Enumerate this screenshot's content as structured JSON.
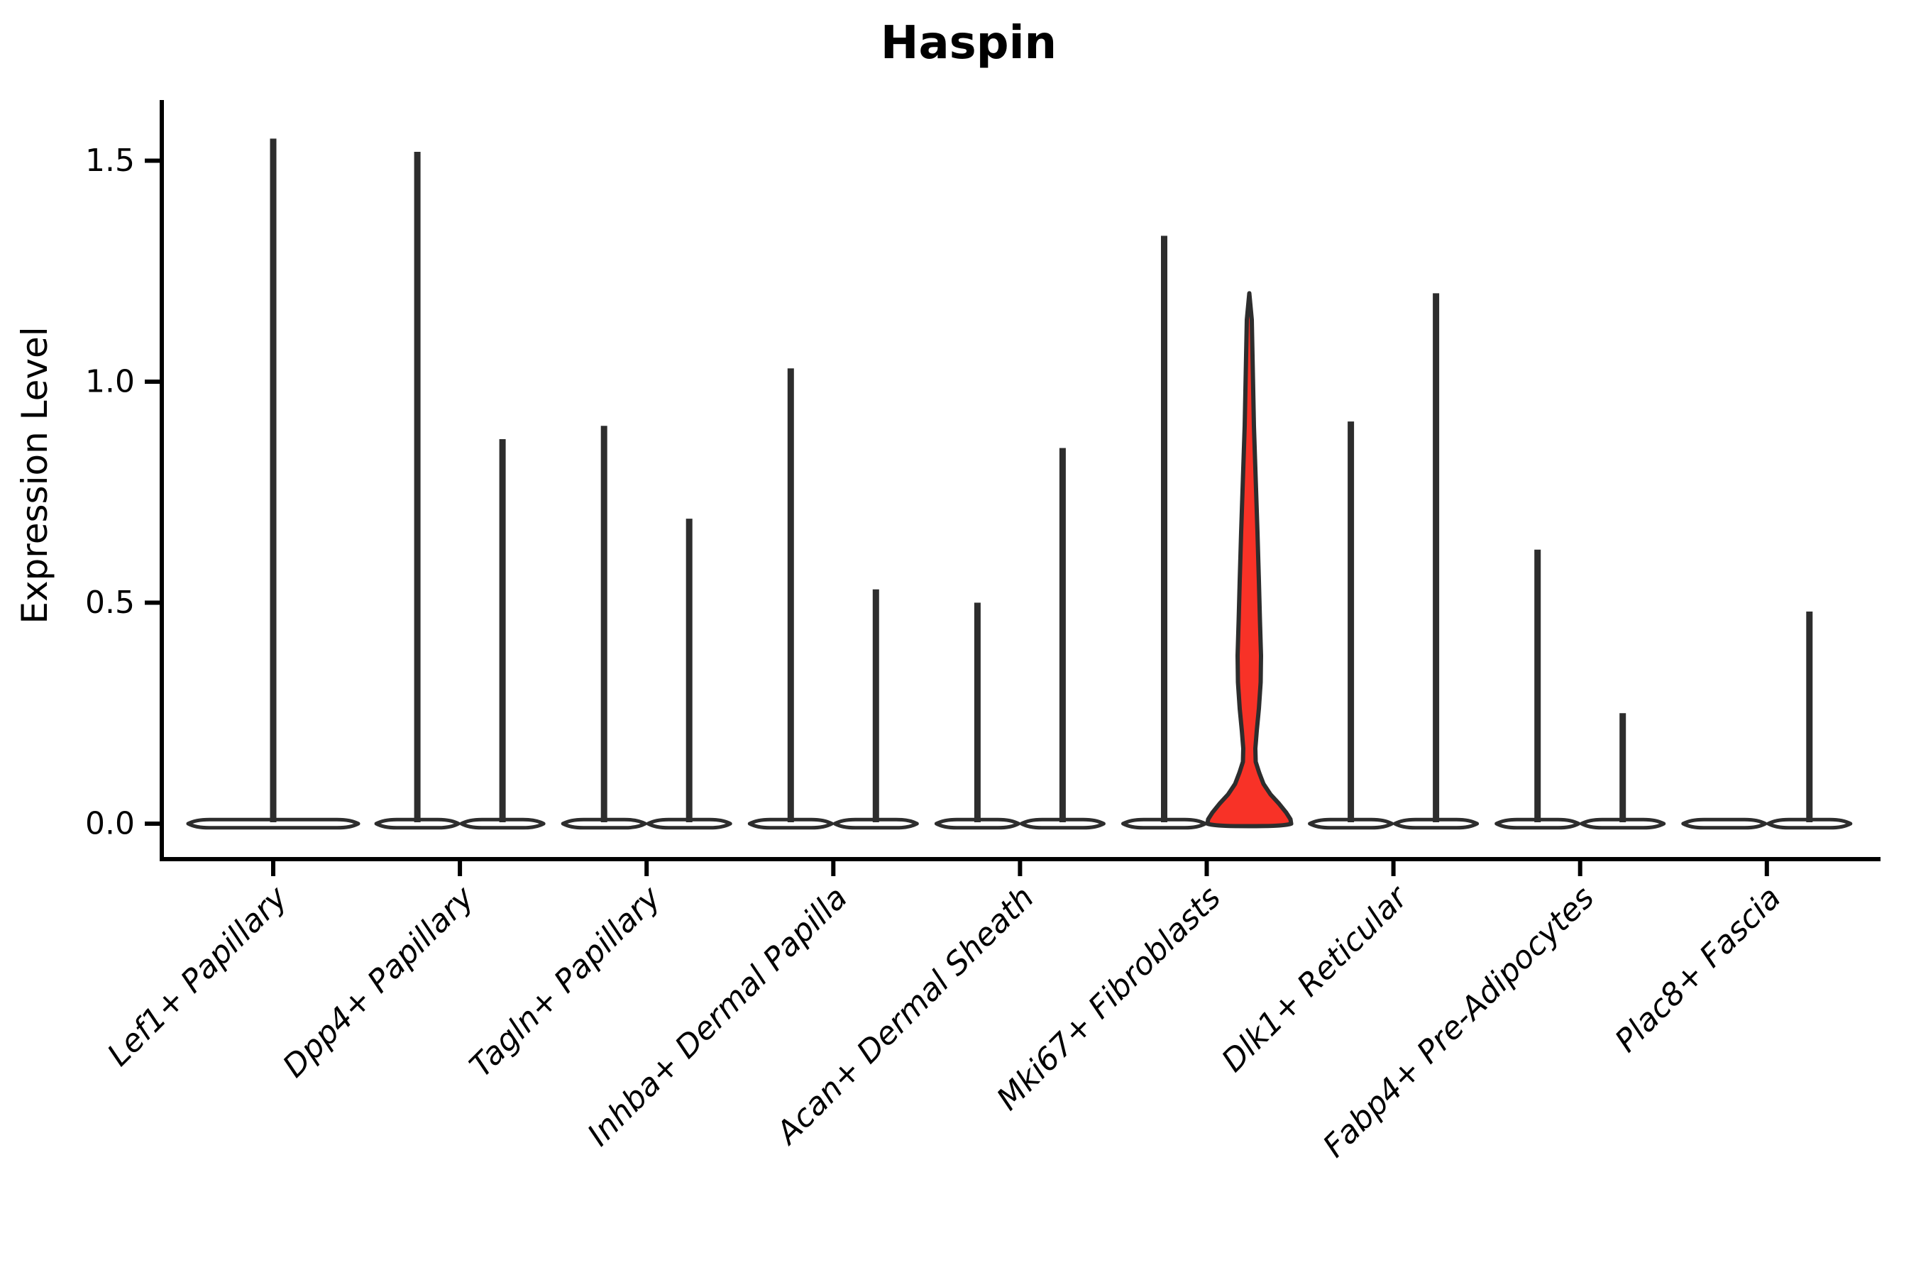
{
  "title": "Haspin",
  "y_axis": {
    "label": "Expression Level",
    "tick_labels": [
      "0.0",
      "0.5",
      "1.0",
      "1.5"
    ]
  },
  "chart_data": {
    "type": "violin",
    "title": "Haspin",
    "xlabel": "",
    "ylabel": "Expression Level",
    "ylim": [
      0,
      1.64
    ],
    "yticks": [
      {
        "value": 0.0,
        "label": "0.0"
      },
      {
        "value": 0.5,
        "label": "0.5"
      },
      {
        "value": 1.0,
        "label": "1.0"
      },
      {
        "value": 1.5,
        "label": "1.5"
      }
    ],
    "grid": false,
    "legend": "none",
    "categories": [
      "Lef1+ Papillary",
      "Dpp4+ Papillary",
      "Tagln+ Papillary",
      "Inhba+ Dermal Papilla",
      "Acan+ Dermal Sheath",
      "Mki67+ Fibroblasts",
      "Dlk1+ Reticular",
      "Fabp4+ Pre-Adipocytes",
      "Plac8+ Fascia"
    ],
    "violins": [
      {
        "category": "Lef1+ Papillary",
        "group": "single",
        "max_expression": 1.55,
        "highlighted": false
      },
      {
        "category": "Dpp4+ Papillary",
        "group": "left",
        "max_expression": 1.52,
        "highlighted": false
      },
      {
        "category": "Dpp4+ Papillary",
        "group": "right",
        "max_expression": 0.87,
        "highlighted": false
      },
      {
        "category": "Tagln+ Papillary",
        "group": "left",
        "max_expression": 0.9,
        "highlighted": false
      },
      {
        "category": "Tagln+ Papillary",
        "group": "right",
        "max_expression": 0.69,
        "highlighted": false
      },
      {
        "category": "Inhba+ Dermal Papilla",
        "group": "left",
        "max_expression": 1.03,
        "highlighted": false
      },
      {
        "category": "Inhba+ Dermal Papilla",
        "group": "right",
        "max_expression": 0.53,
        "highlighted": false
      },
      {
        "category": "Acan+ Dermal Sheath",
        "group": "left",
        "max_expression": 0.5,
        "highlighted": false
      },
      {
        "category": "Acan+ Dermal Sheath",
        "group": "right",
        "max_expression": 0.85,
        "highlighted": false
      },
      {
        "category": "Mki67+ Fibroblasts",
        "group": "left",
        "max_expression": 1.33,
        "highlighted": false
      },
      {
        "category": "Mki67+ Fibroblasts",
        "group": "right",
        "max_expression": 1.2,
        "highlighted": true,
        "shape": "bulged",
        "profile": [
          [
            1.2,
            0
          ],
          [
            1.14,
            3.5
          ],
          [
            1.02,
            5
          ],
          [
            0.9,
            6.5
          ],
          [
            0.78,
            9
          ],
          [
            0.66,
            11.5
          ],
          [
            0.55,
            13.5
          ],
          [
            0.46,
            15
          ],
          [
            0.38,
            16.5
          ],
          [
            0.32,
            16
          ],
          [
            0.26,
            13.5
          ],
          [
            0.21,
            10.5
          ],
          [
            0.17,
            8.5
          ],
          [
            0.14,
            9
          ],
          [
            0.115,
            14
          ],
          [
            0.09,
            20
          ],
          [
            0.066,
            30
          ],
          [
            0.045,
            42
          ],
          [
            0.025,
            52
          ],
          [
            0.01,
            58
          ],
          [
            0.0,
            59
          ]
        ]
      },
      {
        "category": "Dlk1+ Reticular",
        "group": "left",
        "max_expression": 0.91,
        "highlighted": false
      },
      {
        "category": "Dlk1+ Reticular",
        "group": "right",
        "max_expression": 1.2,
        "highlighted": false
      },
      {
        "category": "Fabp4+ Pre-Adipocytes",
        "group": "left",
        "max_expression": 0.62,
        "highlighted": false
      },
      {
        "category": "Fabp4+ Pre-Adipocytes",
        "group": "right",
        "max_expression": 0.25,
        "highlighted": false
      },
      {
        "category": "Plac8+ Fascia",
        "group": "left",
        "max_expression": 0.0,
        "highlighted": false
      },
      {
        "category": "Plac8+ Fascia",
        "group": "right",
        "max_expression": 0.48,
        "highlighted": false
      }
    ],
    "colors": {
      "text": "#000000",
      "axis": "#000000",
      "violin_stroke": "#2d2d2d",
      "violin_fill": "#ffffff",
      "highlight_fill": "#F83227"
    }
  }
}
